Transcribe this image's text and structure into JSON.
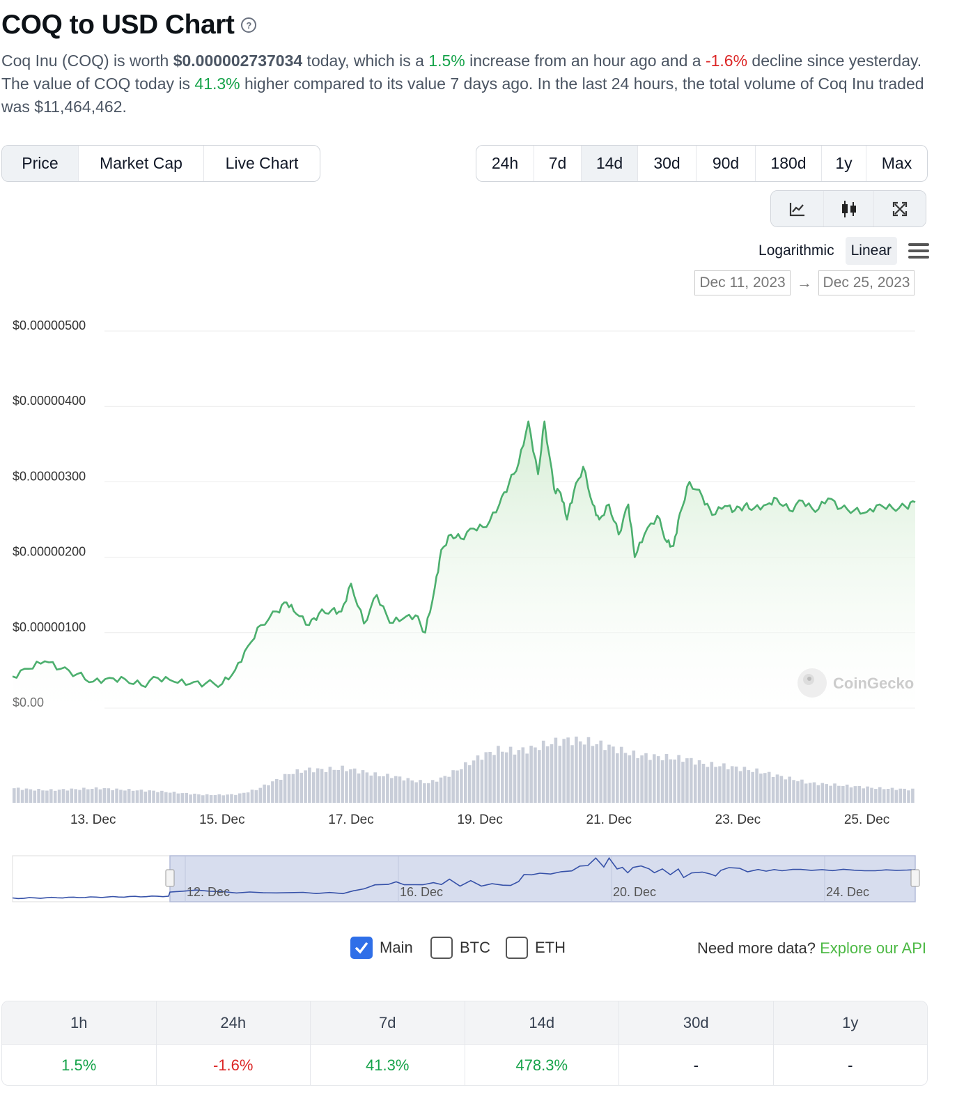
{
  "header": {
    "title": "COQ to USD Chart",
    "help_glyph": "?"
  },
  "description": {
    "p1": "Coq Inu (COQ) is worth ",
    "price": "$0.000002737034",
    "p2": " today, which is a ",
    "hour_change": "1.5%",
    "p3": " increase from an hour ago and a ",
    "day_change": "-1.6%",
    "p4": " decline since yesterday. The value of COQ today is ",
    "week_change": "41.3%",
    "p5": " higher compared to its value 7 days ago. In the last 24 hours, the total volume of Coq Inu traded was $11,464,462."
  },
  "chart_type_tabs": [
    {
      "label": "Price",
      "active": true
    },
    {
      "label": "Market Cap",
      "active": false
    },
    {
      "label": "Live Chart",
      "active": false
    }
  ],
  "range_tabs": [
    {
      "label": "24h",
      "active": false
    },
    {
      "label": "7d",
      "active": false
    },
    {
      "label": "14d",
      "active": true
    },
    {
      "label": "30d",
      "active": false
    },
    {
      "label": "90d",
      "active": false
    },
    {
      "label": "180d",
      "active": false
    },
    {
      "label": "1y",
      "active": false
    },
    {
      "label": "Max",
      "active": false
    }
  ],
  "view_tools": [
    "line-chart-icon",
    "candlestick-icon",
    "fullscreen-icon"
  ],
  "scale": {
    "log_label": "Logarithmic",
    "linear_label": "Linear",
    "selected": "Linear"
  },
  "date_range": {
    "from": "Dec 11, 2023",
    "arrow": "→",
    "to": "Dec 25, 2023"
  },
  "watermark": "CoinGecko",
  "compare": {
    "main_label": "Main",
    "main_checked": true,
    "btc_label": "BTC",
    "btc_checked": false,
    "eth_label": "ETH",
    "eth_checked": false
  },
  "api_promo": {
    "text": "Need more data? ",
    "link": "Explore our API"
  },
  "performance": {
    "headers": [
      "1h",
      "24h",
      "7d",
      "14d",
      "30d",
      "1y"
    ],
    "values": [
      "1.5%",
      "-1.6%",
      "41.3%",
      "478.3%",
      "-",
      "-"
    ],
    "tones": [
      "pos",
      "neg",
      "pos",
      "pos",
      "none",
      "none"
    ]
  },
  "colors": {
    "line": "#4caf6e",
    "fill_top": "#d9f0d8",
    "volume": "#c8cdd8",
    "navigator_fill": "#d3d9ec",
    "navigator_line": "#3651a8"
  },
  "chart_data": {
    "type": "line",
    "title": "COQ to USD Chart",
    "ylabel": "",
    "xlabel": "",
    "ylim": [
      0,
      5e-06
    ],
    "y_ticks": [
      "$0.00",
      "$0.00000100",
      "$0.00000200",
      "$0.00000300",
      "$0.00000400",
      "$0.00000500"
    ],
    "x_tick_labels": [
      "13. Dec",
      "15. Dec",
      "17. Dec",
      "19. Dec",
      "21. Dec",
      "23. Dec",
      "25. Dec"
    ],
    "x_tick_days": [
      13,
      15,
      17,
      19,
      21,
      23,
      25
    ],
    "x_range_days": [
      11.75,
      25.75
    ],
    "series": [
      {
        "name": "Price (USD)",
        "x_days": [
          11.75,
          12.0,
          12.25,
          12.5,
          12.75,
          13.0,
          13.25,
          13.5,
          13.75,
          14.0,
          14.25,
          14.5,
          14.75,
          15.0,
          15.2,
          15.4,
          15.6,
          15.85,
          16.0,
          16.15,
          16.35,
          16.5,
          16.7,
          16.85,
          17.0,
          17.2,
          17.4,
          17.6,
          17.8,
          18.0,
          18.15,
          18.3,
          18.4,
          18.55,
          18.7,
          18.9,
          19.1,
          19.3,
          19.45,
          19.6,
          19.75,
          19.9,
          20.0,
          20.15,
          20.25,
          20.35,
          20.45,
          20.6,
          20.75,
          20.85,
          21.0,
          21.15,
          21.3,
          21.4,
          21.55,
          21.75,
          21.9,
          22.0,
          22.1,
          22.25,
          22.45,
          22.6,
          22.8,
          22.95,
          23.1,
          23.25,
          23.45,
          23.6,
          23.8,
          24.0,
          24.2,
          24.4,
          24.6,
          24.8,
          25.0,
          25.2,
          25.4,
          25.6,
          25.75
        ],
        "values": [
          4.2e-07,
          5.2e-07,
          6.2e-07,
          5.2e-07,
          4.5e-07,
          3.5e-07,
          4e-07,
          3.8e-07,
          3e-07,
          4e-07,
          3.5e-07,
          3.2e-07,
          3.3e-07,
          3.2e-07,
          5e-07,
          8.2e-07,
          1.1e-06,
          1.28e-06,
          1.4e-06,
          1.25e-06,
          1.1e-06,
          1.25e-06,
          1.3e-06,
          1.28e-06,
          1.65e-06,
          1.12e-06,
          1.5e-06,
          1.13e-06,
          1.18e-06,
          1.23e-06,
          1e-06,
          1.6e-06,
          2.1e-06,
          2.3e-06,
          2.25e-06,
          2.38e-06,
          2.4e-06,
          2.7e-06,
          2.98e-06,
          3.25e-06,
          3.8e-06,
          3.1e-06,
          3.8e-06,
          2.9e-06,
          2.85e-06,
          2.5e-06,
          2.85e-06,
          3.2e-06,
          2.7e-06,
          2.5e-06,
          2.7e-06,
          2.3e-06,
          2.7e-06,
          2e-06,
          2.3e-06,
          2.55e-06,
          2.2e-06,
          2.15e-06,
          2.58e-06,
          3e-06,
          2.8e-06,
          2.56e-06,
          2.68e-06,
          2.62e-06,
          2.68e-06,
          2.65e-06,
          2.7e-06,
          2.78e-06,
          2.62e-06,
          2.75e-06,
          2.6e-06,
          2.78e-06,
          2.65e-06,
          2.62e-06,
          2.6e-06,
          2.7e-06,
          2.65e-06,
          2.67e-06,
          2.73e-06
        ]
      }
    ],
    "volume_relative": [
      0.22,
      0.2,
      0.19,
      0.2,
      0.21,
      0.22,
      0.2,
      0.19,
      0.18,
      0.16,
      0.14,
      0.12,
      0.12,
      0.13,
      0.2,
      0.32,
      0.45,
      0.5,
      0.5,
      0.52,
      0.48,
      0.42,
      0.4,
      0.34,
      0.3,
      0.4,
      0.55,
      0.7,
      0.8,
      0.78,
      0.82,
      0.9,
      0.95,
      0.93,
      0.88,
      0.8,
      0.72,
      0.7,
      0.68,
      0.66,
      0.58,
      0.56,
      0.52,
      0.48,
      0.42,
      0.36,
      0.3,
      0.28,
      0.26,
      0.24,
      0.22,
      0.21,
      0.2
    ]
  }
}
